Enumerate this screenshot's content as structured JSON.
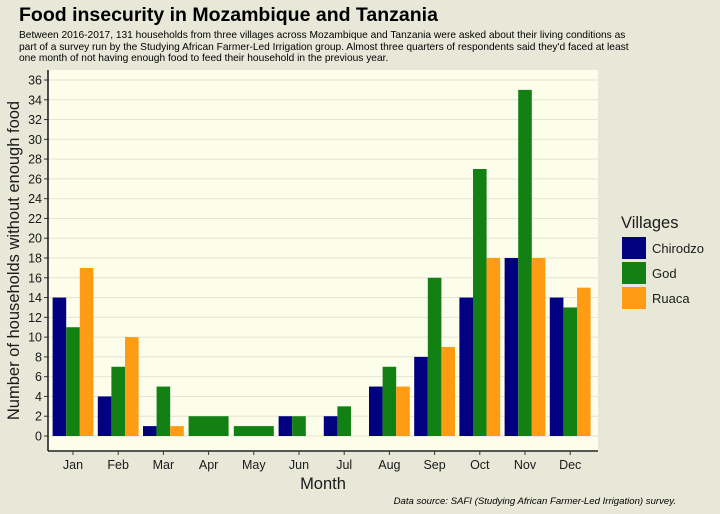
{
  "title": "Food insecurity in Mozambique and Tanzania",
  "subtitle": "Between 2016-2017, 131 households from three villages across Mozambique and Tanzania were asked about their living conditions as part of a survey run by the Studying African Farmer-Led Irrigation group. Almost three quarters of respondents said they'd faced at least one month of not having enough food to feed their household in the previous year.",
  "caption": "Data source: SAFI (Studying African Farmer-Led Irrigation) survey.",
  "colors": {
    "background": "#e8e8d8",
    "panel": "#fdfdeb",
    "grid": "#e4e4d2",
    "Chirodzo": "#000080",
    "God": "#138013",
    "Ruaca": "#ff9c14"
  },
  "chart_data": {
    "type": "bar",
    "xlabel": "Month",
    "ylabel": "Number of households without enough food",
    "ylim": [
      0,
      36
    ],
    "yticks": [
      0,
      2,
      4,
      6,
      8,
      10,
      12,
      14,
      16,
      18,
      20,
      22,
      24,
      26,
      28,
      30,
      32,
      34,
      36
    ],
    "grid": true,
    "legend_title": "Villages",
    "legend_position": "right",
    "categories": [
      "Jan",
      "Feb",
      "Mar",
      "Apr",
      "May",
      "Jun",
      "Jul",
      "Aug",
      "Sep",
      "Oct",
      "Nov",
      "Dec"
    ],
    "series": [
      {
        "name": "Chirodzo",
        "values": [
          14,
          4,
          1,
          null,
          null,
          2,
          2,
          5,
          8,
          14,
          18,
          14
        ]
      },
      {
        "name": "God",
        "values": [
          11,
          7,
          5,
          2,
          1,
          2,
          3,
          7,
          16,
          27,
          35,
          13
        ]
      },
      {
        "name": "Ruaca",
        "values": [
          17,
          10,
          1,
          null,
          null,
          null,
          null,
          5,
          9,
          18,
          18,
          15
        ]
      }
    ]
  }
}
